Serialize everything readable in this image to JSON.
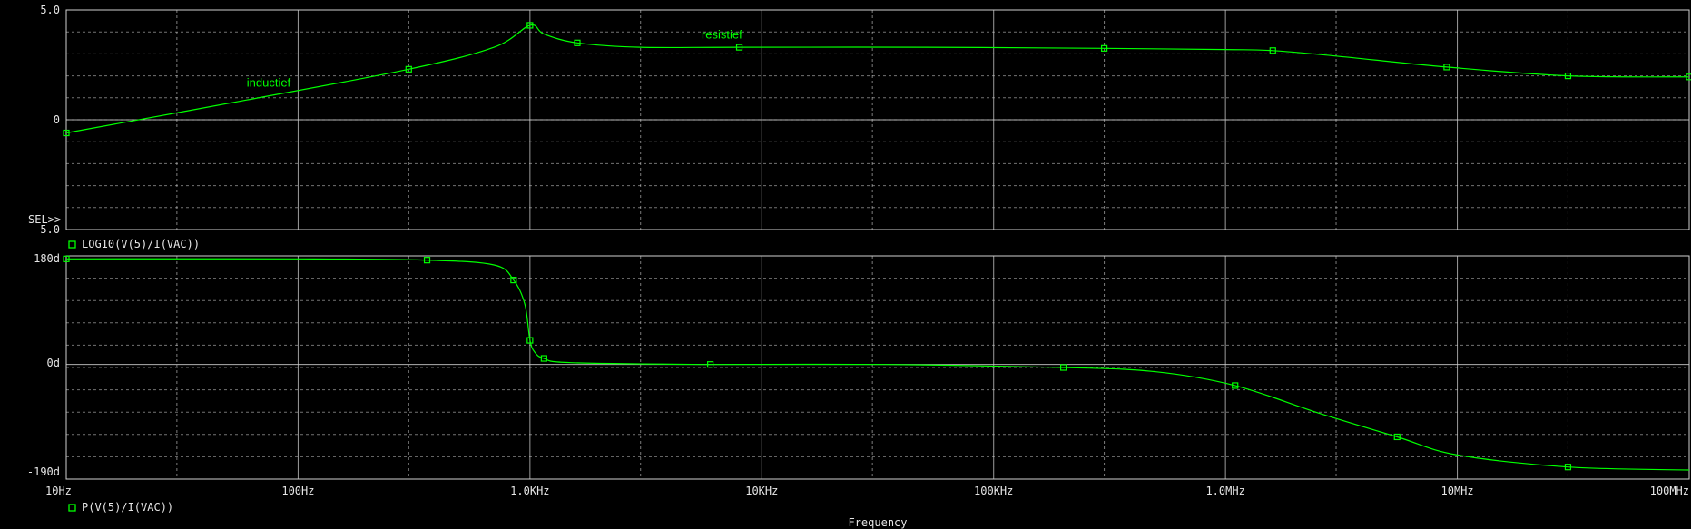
{
  "colors": {
    "background": "#000000",
    "trace": "#00ff00",
    "grid": "#d0d0d0",
    "text": "#e6e6e6"
  },
  "ui": {
    "selector": "SEL>>",
    "xlabel": "Frequency"
  },
  "chart_data": [
    {
      "type": "line",
      "panel": "top",
      "x_scale": "log",
      "xlim": [
        10,
        100000000
      ],
      "ylim": [
        -5,
        5
      ],
      "y_tick_labels": [
        "5.0",
        "0",
        "-5.0"
      ],
      "x_tick_labels": [
        "10Hz",
        "100Hz",
        "1.0KHz",
        "10KHz",
        "100KHz",
        "1.0MHz",
        "10MHz",
        "100MHz"
      ],
      "series": [
        {
          "name": "LOG10(V(5)/I(VAC))",
          "color": "#00ff00",
          "x": [
            10,
            60,
            300,
            700,
            1000,
            1150,
            1600,
            3000,
            8000,
            50000,
            300000,
            1000000,
            1600000,
            3000000,
            9000000,
            30000000,
            100000000
          ],
          "y": [
            -0.6,
            0.9,
            2.3,
            3.3,
            4.3,
            3.9,
            3.5,
            3.3,
            3.3,
            3.3,
            3.25,
            3.2,
            3.15,
            2.9,
            2.4,
            2.0,
            1.95
          ]
        }
      ],
      "annotations": [
        {
          "text": "inductief",
          "x": 60,
          "y": 1.5
        },
        {
          "text": "resistief",
          "x": 5500,
          "y": 3.7
        }
      ]
    },
    {
      "type": "line",
      "panel": "bottom",
      "x_scale": "log",
      "xlim": [
        10,
        100000000
      ],
      "ylim": [
        -190,
        180
      ],
      "y_tick_labels": [
        "180d",
        "0d",
        "-190d"
      ],
      "x_tick_labels": [
        "10Hz",
        "100Hz",
        "1.0KHz",
        "10KHz",
        "100KHz",
        "1.0MHz",
        "10MHz",
        "100MHz"
      ],
      "series": [
        {
          "name": "P(V(5)/I(VAC))",
          "color": "#00ff00",
          "x": [
            10,
            100,
            360,
            700,
            850,
            950,
            1000,
            1050,
            1150,
            1500,
            6000,
            35000,
            200000,
            500000,
            1100000,
            2500000,
            5500000,
            10000000,
            30000000,
            100000000
          ],
          "y": [
            175,
            175,
            173,
            165,
            140,
            100,
            40,
            20,
            10,
            3,
            0,
            0,
            -5,
            -12,
            -35,
            -80,
            -120,
            -150,
            -170,
            -175
          ]
        }
      ]
    }
  ]
}
